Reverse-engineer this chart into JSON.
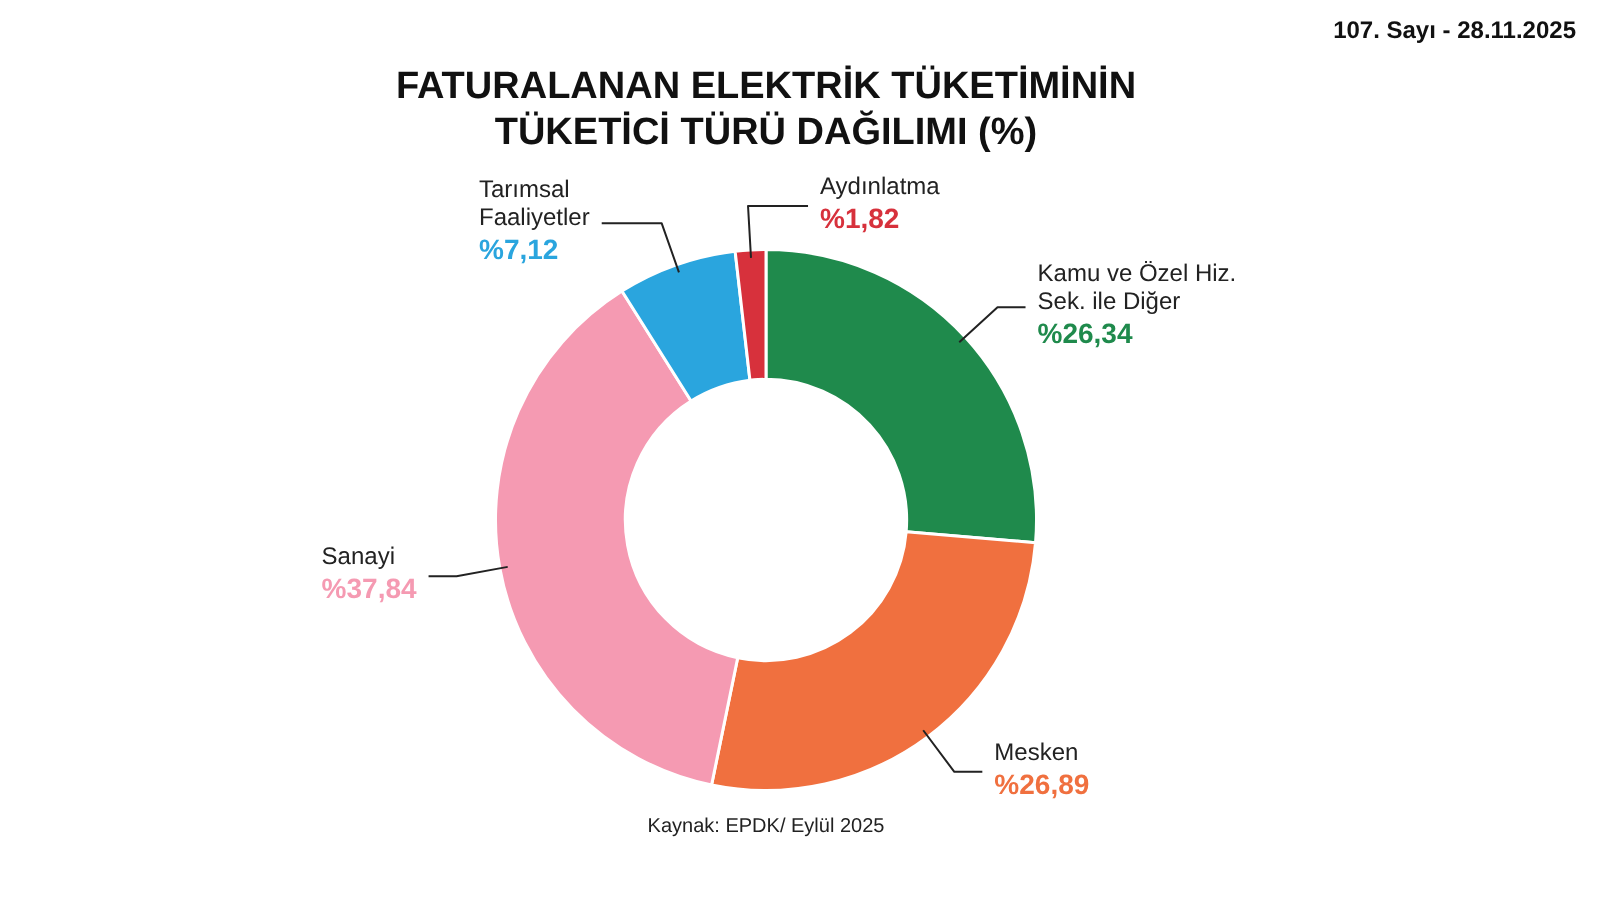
{
  "chart_data": {
    "type": "donut",
    "title": "FATURALANAN ELEKTRİK TÜKETİMİNİN TÜKETİCİ TÜRÜ DAĞILIMI (%)",
    "categories": [
      "Kamu ve Özel Hiz. Sek. ile Diğer",
      "Mesken",
      "Sanayi",
      "Tarımsal Faaliyetler",
      "Aydınlatma"
    ],
    "values": [
      26.34,
      26.89,
      37.84,
      7.12,
      1.82
    ],
    "value_labels": [
      "%26,34",
      "%26,89",
      "%37,84",
      "%7,12",
      "%1,82"
    ],
    "colors": [
      "#1f8a4c",
      "#f0703f",
      "#f59ab2",
      "#2aa5de",
      "#d7313c"
    ],
    "legend": false,
    "annotations": [
      "107. Sayı - 28.11.2025",
      "Kaynak: EPDK/ Eylül 2025"
    ]
  }
}
